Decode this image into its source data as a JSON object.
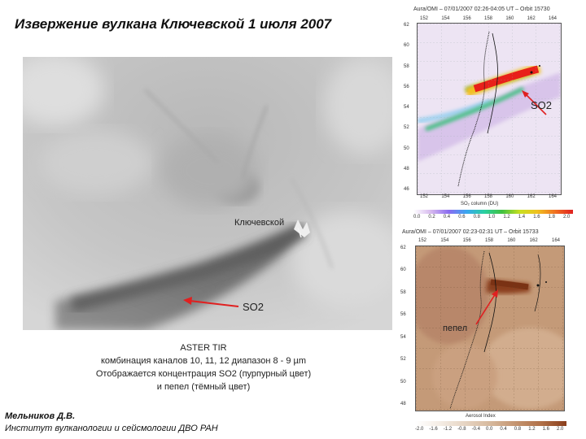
{
  "title": "Извержение вулкана Ключевской 1 июля 2007",
  "aster_image": {
    "volcano_label": "Ключевской",
    "so2_label": "SO2"
  },
  "caption": {
    "line1": "ASTER TIR",
    "line2": "комбинация каналов 10, 11, 12 диапазон 8 - 9 µm",
    "line3": "Отображается концентрация SO2 (пурпурный цвет)",
    "line4": "и пепел (тёмный цвет)"
  },
  "author": {
    "name": "Мельников Д.В.",
    "institute": "Институт вулканологии и сейсмологии ДВО РАН"
  },
  "so2_map": {
    "header": "Aura/OMI – 07/01/2007 02:26-04:05 UT – Orbit 15730",
    "annotation": "SO2",
    "top_ticks": [
      "152",
      "154",
      "156",
      "158",
      "160",
      "162",
      "164"
    ],
    "left_ticks": [
      "62",
      "60",
      "58",
      "56",
      "54",
      "52",
      "50",
      "48",
      "46"
    ],
    "bottom_ticks": [
      "152",
      "154",
      "156",
      "158",
      "160",
      "162",
      "164"
    ],
    "scale_label": "SO₂ column (DU)",
    "scale_ticks": [
      "0.0",
      "0.2",
      "0.4",
      "0.6",
      "0.8",
      "1.0",
      "1.2",
      "1.4",
      "1.6",
      "1.8",
      "2.0"
    ]
  },
  "ash_map": {
    "header": "Aura/OMI – 07/01/2007 02:23-02:31 UT – Orbit 15733",
    "annotation": "пепел",
    "top_ticks": [
      "152",
      "154",
      "156",
      "158",
      "160",
      "162",
      "164"
    ],
    "left_ticks": [
      "62",
      "60",
      "58",
      "56",
      "54",
      "52",
      "50",
      "48"
    ],
    "scale_label": "Aerosol Index",
    "scale_ticks": [
      "-2.0",
      "-1.6",
      "-1.2",
      "-0.8",
      "-0.4",
      "0.0",
      "0.4",
      "0.8",
      "1.2",
      "1.6",
      "2.0"
    ]
  },
  "colors": {
    "so2_plume": "#e8201a",
    "ash_plume": "#8a3e1c",
    "arrow": "#e02020"
  }
}
